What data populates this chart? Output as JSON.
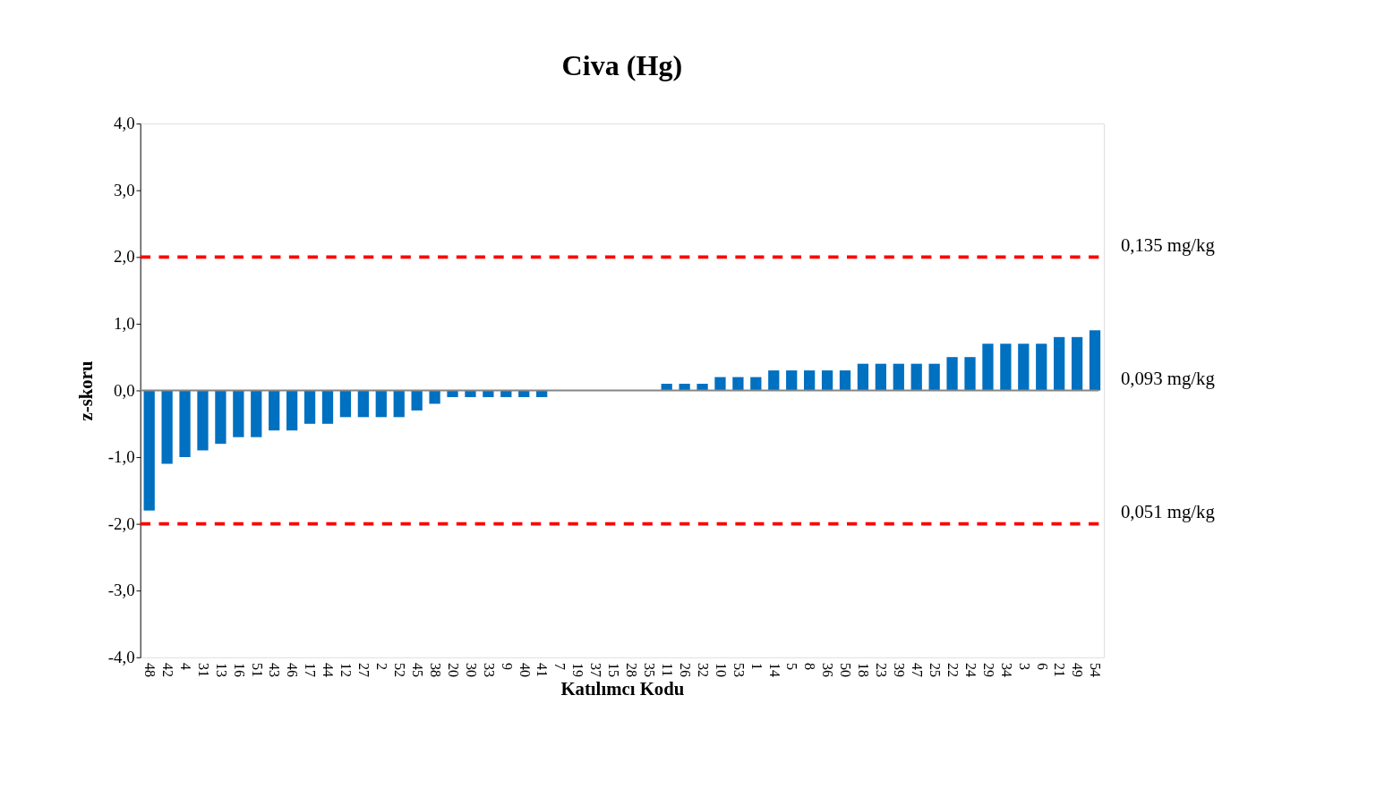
{
  "chart_data": {
    "type": "bar",
    "title": "Civa (Hg)",
    "xlabel": "Katılımcı Kodu",
    "ylabel": "z-skoru",
    "categories": [
      "48",
      "42",
      "4",
      "31",
      "13",
      "16",
      "51",
      "43",
      "46",
      "17",
      "44",
      "12",
      "27",
      "2",
      "52",
      "45",
      "38",
      "20",
      "30",
      "33",
      "9",
      "40",
      "41",
      "7",
      "19",
      "37",
      "15",
      "28",
      "35",
      "11",
      "26",
      "32",
      "10",
      "53",
      "1",
      "14",
      "5",
      "8",
      "36",
      "50",
      "18",
      "23",
      "39",
      "47",
      "25",
      "22",
      "24",
      "29",
      "34",
      "3",
      "6",
      "21",
      "49",
      "54"
    ],
    "values": [
      -1.8,
      -1.1,
      -1.0,
      -0.9,
      -0.8,
      -0.7,
      -0.7,
      -0.6,
      -0.6,
      -0.5,
      -0.5,
      -0.4,
      -0.4,
      -0.4,
      -0.4,
      -0.3,
      -0.2,
      -0.1,
      -0.1,
      -0.1,
      -0.1,
      -0.1,
      -0.1,
      0,
      0,
      0,
      0,
      0,
      0,
      0.1,
      0.1,
      0.1,
      0.2,
      0.2,
      0.2,
      0.3,
      0.3,
      0.3,
      0.3,
      0.3,
      0.4,
      0.4,
      0.4,
      0.4,
      0.4,
      0.5,
      0.5,
      0.7,
      0.7,
      0.7,
      0.7,
      0.8,
      0.8,
      0.9
    ],
    "color": "#0070c0",
    "ylim": [
      -4,
      4
    ],
    "yticks": [
      {
        "value": -4,
        "label": "-4,0"
      },
      {
        "value": -3,
        "label": "-3,0"
      },
      {
        "value": -2,
        "label": "-2,0"
      },
      {
        "value": -1,
        "label": "-1,0"
      },
      {
        "value": 0,
        "label": "0,0"
      },
      {
        "value": 1,
        "label": "1,0"
      },
      {
        "value": 2,
        "label": "2,0"
      },
      {
        "value": 3,
        "label": "3,0"
      },
      {
        "value": 4,
        "label": "4,0"
      }
    ],
    "ref_lines": [
      {
        "axis": "y",
        "value": 2,
        "label": "0,135 mg/kg",
        "color": "#ff0000",
        "line_style": "dashed"
      },
      {
        "axis": "y",
        "value": 0,
        "label": "0,093 mg/kg",
        "color": "#868686",
        "line_style": "solid"
      },
      {
        "axis": "y",
        "value": -2,
        "label": "0,051 mg/kg",
        "color": "#ff0000",
        "line_style": "dashed"
      }
    ],
    "grid": false
  }
}
